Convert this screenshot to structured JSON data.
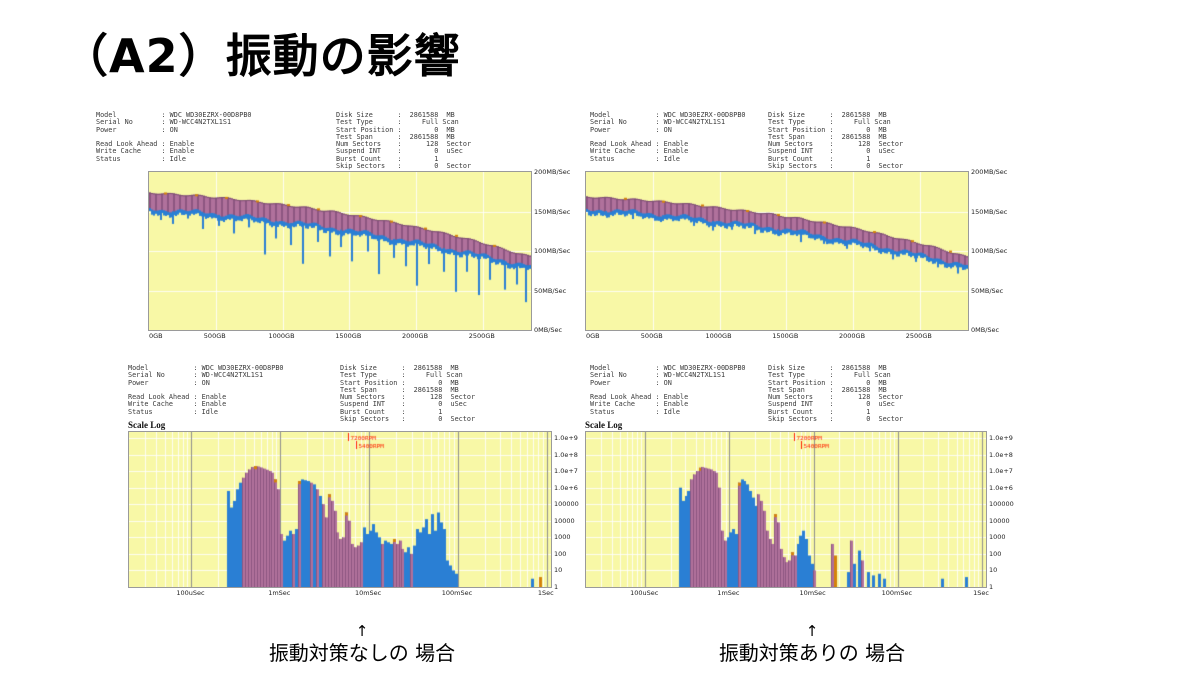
{
  "slide": {
    "title": "（A2）振動の影響"
  },
  "headers": {
    "left_lines": [
      "Model           : WDC WD30EZRX-00D8PB0",
      "Serial No       : WD-WCC4N2TXL1S1",
      "Power           : ON",
      "",
      "Read Look Ahead : Enable",
      "Write Cache     : Enable",
      "Status          : Idle"
    ],
    "right_lines": [
      "Disk Size      :  2861588  MB",
      "Test Type      :     Full Scan",
      "Start Position :        0  MB",
      "Test Span      :  2861588  MB",
      "Num Sectors    :      128  Sector",
      "Suspend INT    :        0  uSec",
      "Burst Count    :        1",
      "Skip Sectors   :        0  Sector"
    ],
    "scale_label": "Scale Log"
  },
  "captions": {
    "left_arrow": "↑",
    "left_text": "振動対策なしの 場合",
    "right_arrow": "↑",
    "right_text": "振動対策ありの 場合"
  },
  "colors": {
    "chart_bg": "#f8f8a6",
    "grid_white": "rgba(255,255,255,0.85)",
    "grid_major": "#8f8f8f",
    "band": "#b0719c",
    "band_stripe": "#8d5681",
    "band_top_edge": "#7a4a72",
    "blue": "#2a7fd4",
    "orange": "#d4820a",
    "red": "#ff2200"
  },
  "chart_data": [
    {
      "kind": "band",
      "name": "transfer-rate-no-damping",
      "ylim": [
        0,
        200
      ],
      "x_max_gb": 2861,
      "yticks": [
        {
          "v": 200,
          "label": "200MB/Sec"
        },
        {
          "v": 150,
          "label": "150MB/Sec"
        },
        {
          "v": 100,
          "label": "100MB/Sec"
        },
        {
          "v": 50,
          "label": "50MB/Sec"
        },
        {
          "v": 0,
          "label": "0MB/Sec"
        }
      ],
      "xticks": [
        {
          "gb": 0,
          "label": "0GB"
        },
        {
          "gb": 500,
          "label": "500GB"
        },
        {
          "gb": 1000,
          "label": "1000GB"
        },
        {
          "gb": 1500,
          "label": "1500GB"
        },
        {
          "gb": 2000,
          "label": "2000GB"
        },
        {
          "gb": 2500,
          "label": "2500GB"
        }
      ],
      "top": [
        174,
        173,
        172,
        171,
        170,
        168,
        167,
        165,
        163,
        161,
        159,
        157,
        155,
        152,
        150,
        147,
        144,
        141,
        138,
        135,
        131,
        128,
        124,
        120,
        116,
        112,
        107,
        102,
        97,
        93
      ],
      "bottom": [
        153,
        151,
        150,
        149,
        148,
        146,
        145,
        143,
        141,
        139,
        137,
        135,
        133,
        131,
        128,
        126,
        123,
        120,
        117,
        114,
        111,
        108,
        105,
        101,
        98,
        94,
        91,
        87,
        83,
        80
      ],
      "spikes": [
        [
          0.03,
          12
        ],
        [
          0.06,
          16
        ],
        [
          0.1,
          8
        ],
        [
          0.14,
          20
        ],
        [
          0.18,
          14
        ],
        [
          0.22,
          22
        ],
        [
          0.26,
          12
        ],
        [
          0.3,
          44
        ],
        [
          0.33,
          22
        ],
        [
          0.37,
          28
        ],
        [
          0.4,
          50
        ],
        [
          0.44,
          20
        ],
        [
          0.47,
          36
        ],
        [
          0.5,
          22
        ],
        [
          0.53,
          38
        ],
        [
          0.57,
          22
        ],
        [
          0.6,
          48
        ],
        [
          0.64,
          24
        ],
        [
          0.67,
          32
        ],
        [
          0.7,
          54
        ],
        [
          0.73,
          24
        ],
        [
          0.77,
          30
        ],
        [
          0.8,
          52
        ],
        [
          0.83,
          24
        ],
        [
          0.86,
          50
        ],
        [
          0.89,
          28
        ],
        [
          0.93,
          36
        ],
        [
          0.96,
          26
        ],
        [
          0.985,
          46
        ]
      ],
      "orange_tips": [
        0.04,
        0.12,
        0.2,
        0.28,
        0.36,
        0.44,
        0.55,
        0.63,
        0.72,
        0.8,
        0.9
      ]
    },
    {
      "kind": "band",
      "name": "transfer-rate-with-damping",
      "ylim": [
        0,
        200
      ],
      "x_max_gb": 2861,
      "yticks": [
        {
          "v": 200,
          "label": "200MB/Sec"
        },
        {
          "v": 150,
          "label": "150MB/Sec"
        },
        {
          "v": 100,
          "label": "100MB/Sec"
        },
        {
          "v": 50,
          "label": "50MB/Sec"
        },
        {
          "v": 0,
          "label": "0MB/Sec"
        }
      ],
      "xticks": [
        {
          "gb": 0,
          "label": "0GB"
        },
        {
          "gb": 500,
          "label": "500GB"
        },
        {
          "gb": 1000,
          "label": "1000GB"
        },
        {
          "gb": 1500,
          "label": "1500GB"
        },
        {
          "gb": 2000,
          "label": "2000GB"
        },
        {
          "gb": 2500,
          "label": "2500GB"
        }
      ],
      "top": [
        169,
        168,
        167,
        166,
        165,
        164,
        162,
        161,
        159,
        157,
        155,
        153,
        151,
        149,
        147,
        144,
        142,
        139,
        136,
        133,
        130,
        127,
        123,
        119,
        115,
        111,
        107,
        102,
        97,
        92
      ],
      "bottom": [
        152,
        151,
        150,
        149,
        148,
        146,
        145,
        143,
        141,
        139,
        137,
        135,
        133,
        131,
        129,
        126,
        124,
        121,
        118,
        115,
        112,
        109,
        106,
        102,
        99,
        95,
        92,
        88,
        84,
        80
      ],
      "spikes": [
        [
          0.05,
          6
        ],
        [
          0.12,
          8
        ],
        [
          0.2,
          7
        ],
        [
          0.28,
          9
        ],
        [
          0.33,
          12
        ],
        [
          0.38,
          8
        ],
        [
          0.44,
          10
        ],
        [
          0.5,
          8
        ],
        [
          0.56,
          12
        ],
        [
          0.62,
          9
        ],
        [
          0.68,
          10
        ],
        [
          0.74,
          8
        ],
        [
          0.8,
          12
        ],
        [
          0.86,
          9
        ],
        [
          0.92,
          10
        ],
        [
          0.97,
          12
        ]
      ],
      "orange_tips": [
        0.1,
        0.2,
        0.3,
        0.42,
        0.5,
        0.62,
        0.75,
        0.85,
        0.95
      ]
    },
    {
      "kind": "loghist",
      "name": "access-time-histogram-no-damping",
      "decade_f0": 0.148,
      "decade_fw": 0.2105,
      "xticks": [
        {
          "f": 0.148,
          "label": "100uSec"
        },
        {
          "f": 0.3585,
          "label": "1mSec"
        },
        {
          "f": 0.569,
          "label": "10mSec"
        },
        {
          "f": 0.7795,
          "label": "100mSec"
        },
        {
          "f": 0.99,
          "label": "1Sec"
        }
      ],
      "ylabels": [
        "1.0e+9",
        "1.0e+8",
        "1.0e+7",
        "1.0e+6",
        "100000",
        "10000",
        "1000",
        "100",
        "10",
        "1"
      ],
      "annotations": [
        {
          "f": 0.52,
          "label": "7200RPM"
        },
        {
          "f": 0.537,
          "label": "5400RPM"
        }
      ],
      "bars": [
        [
          0.235,
          5.8,
          0
        ],
        [
          0.242,
          4.8,
          0
        ],
        [
          0.249,
          5.2,
          0
        ],
        [
          0.256,
          5.9,
          0
        ],
        [
          0.263,
          6.3,
          0
        ],
        [
          0.27,
          6.6,
          1
        ],
        [
          0.277,
          6.9,
          1
        ],
        [
          0.284,
          7.1,
          1
        ],
        [
          0.291,
          7.25,
          1
        ],
        [
          0.298,
          7.3,
          2
        ],
        [
          0.305,
          7.28,
          1
        ],
        [
          0.312,
          7.22,
          1
        ],
        [
          0.319,
          7.15,
          1
        ],
        [
          0.326,
          7.08,
          1
        ],
        [
          0.333,
          7.0,
          1
        ],
        [
          0.34,
          6.9,
          1
        ],
        [
          0.347,
          6.5,
          2
        ],
        [
          0.354,
          5.9,
          1
        ],
        [
          0.361,
          3.2,
          1
        ],
        [
          0.368,
          2.8,
          0
        ],
        [
          0.375,
          3.1,
          0
        ],
        [
          0.382,
          3.4,
          0
        ],
        [
          0.389,
          3.2,
          1
        ],
        [
          0.396,
          3.5,
          0
        ],
        [
          0.403,
          6.4,
          2
        ],
        [
          0.41,
          6.5,
          0
        ],
        [
          0.417,
          6.45,
          0
        ],
        [
          0.424,
          6.4,
          0
        ],
        [
          0.431,
          6.3,
          1
        ],
        [
          0.438,
          6.2,
          0
        ],
        [
          0.445,
          5.9,
          1
        ],
        [
          0.452,
          5.5,
          0
        ],
        [
          0.459,
          5.0,
          1
        ],
        [
          0.466,
          4.2,
          1
        ],
        [
          0.473,
          5.6,
          2
        ],
        [
          0.48,
          5.2,
          1
        ],
        [
          0.487,
          4.6,
          1
        ],
        [
          0.494,
          3.3,
          1
        ],
        [
          0.501,
          2.9,
          1
        ],
        [
          0.508,
          3.0,
          1
        ],
        [
          0.515,
          4.5,
          2
        ],
        [
          0.522,
          4.0,
          1
        ],
        [
          0.529,
          2.6,
          1
        ],
        [
          0.536,
          2.4,
          1
        ],
        [
          0.543,
          2.5,
          1
        ],
        [
          0.55,
          2.7,
          1
        ],
        [
          0.557,
          3.6,
          0
        ],
        [
          0.564,
          3.2,
          0
        ],
        [
          0.571,
          3.4,
          0
        ],
        [
          0.578,
          3.8,
          0
        ],
        [
          0.585,
          3.3,
          0
        ],
        [
          0.592,
          3.0,
          0
        ],
        [
          0.599,
          2.6,
          1
        ],
        [
          0.606,
          2.8,
          0
        ],
        [
          0.613,
          2.7,
          0
        ],
        [
          0.62,
          2.6,
          0
        ],
        [
          0.627,
          2.9,
          2
        ],
        [
          0.634,
          2.6,
          1
        ],
        [
          0.641,
          2.8,
          1
        ],
        [
          0.648,
          2.3,
          1
        ],
        [
          0.655,
          2.1,
          0
        ],
        [
          0.662,
          2.4,
          0
        ],
        [
          0.669,
          2.0,
          1
        ],
        [
          0.676,
          2.5,
          0
        ],
        [
          0.683,
          3.5,
          0
        ],
        [
          0.69,
          3.3,
          0
        ],
        [
          0.697,
          3.6,
          0
        ],
        [
          0.704,
          4.1,
          0
        ],
        [
          0.711,
          3.2,
          0
        ],
        [
          0.718,
          4.4,
          0
        ],
        [
          0.725,
          3.4,
          0
        ],
        [
          0.732,
          4.5,
          0
        ],
        [
          0.739,
          3.9,
          0
        ],
        [
          0.746,
          3.5,
          0
        ],
        [
          0.753,
          1.6,
          0
        ],
        [
          0.76,
          1.3,
          0
        ],
        [
          0.767,
          1.0,
          0
        ],
        [
          0.774,
          0.8,
          0
        ],
        [
          0.955,
          0.5,
          0
        ],
        [
          0.975,
          0.6,
          3
        ]
      ]
    },
    {
      "kind": "loghist",
      "name": "access-time-histogram-with-damping",
      "decade_f0": 0.148,
      "decade_fw": 0.2105,
      "xticks": [
        {
          "f": 0.148,
          "label": "100uSec"
        },
        {
          "f": 0.3585,
          "label": "1mSec"
        },
        {
          "f": 0.569,
          "label": "10mSec"
        },
        {
          "f": 0.7795,
          "label": "100mSec"
        },
        {
          "f": 0.99,
          "label": "1Sec"
        }
      ],
      "ylabels": [
        "1.0e+9",
        "1.0e+8",
        "1.0e+7",
        "1.0e+6",
        "100000",
        "10000",
        "1000",
        "100",
        "10",
        "1"
      ],
      "annotations": [
        {
          "f": 0.52,
          "label": "7200RPM"
        },
        {
          "f": 0.537,
          "label": "5400RPM"
        }
      ],
      "bars": [
        [
          0.235,
          6.0,
          0
        ],
        [
          0.242,
          5.2,
          0
        ],
        [
          0.249,
          5.5,
          0
        ],
        [
          0.256,
          5.8,
          0
        ],
        [
          0.263,
          6.5,
          1
        ],
        [
          0.27,
          6.8,
          1
        ],
        [
          0.277,
          7.0,
          1
        ],
        [
          0.284,
          7.2,
          2
        ],
        [
          0.291,
          7.25,
          1
        ],
        [
          0.298,
          7.2,
          1
        ],
        [
          0.305,
          7.15,
          1
        ],
        [
          0.312,
          7.1,
          1
        ],
        [
          0.319,
          7.0,
          1
        ],
        [
          0.326,
          6.9,
          1
        ],
        [
          0.333,
          6.0,
          1
        ],
        [
          0.34,
          3.4,
          1
        ],
        [
          0.347,
          2.8,
          1
        ],
        [
          0.354,
          3.0,
          0
        ],
        [
          0.361,
          3.3,
          0
        ],
        [
          0.368,
          3.5,
          0
        ],
        [
          0.375,
          3.2,
          0
        ],
        [
          0.382,
          6.3,
          2
        ],
        [
          0.389,
          6.5,
          0
        ],
        [
          0.396,
          6.4,
          0
        ],
        [
          0.403,
          6.2,
          0
        ],
        [
          0.41,
          5.8,
          0
        ],
        [
          0.417,
          5.4,
          0
        ],
        [
          0.424,
          4.9,
          0
        ],
        [
          0.431,
          5.6,
          1
        ],
        [
          0.438,
          5.2,
          1
        ],
        [
          0.445,
          4.6,
          1
        ],
        [
          0.452,
          3.4,
          1
        ],
        [
          0.459,
          2.9,
          1
        ],
        [
          0.466,
          2.6,
          1
        ],
        [
          0.473,
          4.4,
          2
        ],
        [
          0.48,
          3.9,
          1
        ],
        [
          0.487,
          2.3,
          1
        ],
        [
          0.494,
          1.8,
          1
        ],
        [
          0.501,
          1.5,
          1
        ],
        [
          0.508,
          1.6,
          1
        ],
        [
          0.515,
          2.1,
          2
        ],
        [
          0.522,
          1.9,
          1
        ],
        [
          0.529,
          2.6,
          0
        ],
        [
          0.536,
          3.1,
          0
        ],
        [
          0.543,
          3.4,
          0
        ],
        [
          0.55,
          2.9,
          0
        ],
        [
          0.557,
          1.9,
          0
        ],
        [
          0.564,
          1.4,
          0
        ],
        [
          0.571,
          1.0,
          1
        ],
        [
          0.615,
          2.6,
          1
        ],
        [
          0.622,
          1.9,
          3
        ],
        [
          0.655,
          0.9,
          0
        ],
        [
          0.662,
          2.8,
          1
        ],
        [
          0.669,
          1.4,
          0
        ],
        [
          0.683,
          2.2,
          0
        ],
        [
          0.69,
          1.6,
          1
        ],
        [
          0.704,
          0.9,
          0
        ],
        [
          0.718,
          0.7,
          0
        ],
        [
          0.732,
          0.8,
          0
        ],
        [
          0.746,
          0.5,
          0
        ],
        [
          0.89,
          0.5,
          0
        ],
        [
          0.95,
          0.6,
          0
        ]
      ]
    }
  ]
}
